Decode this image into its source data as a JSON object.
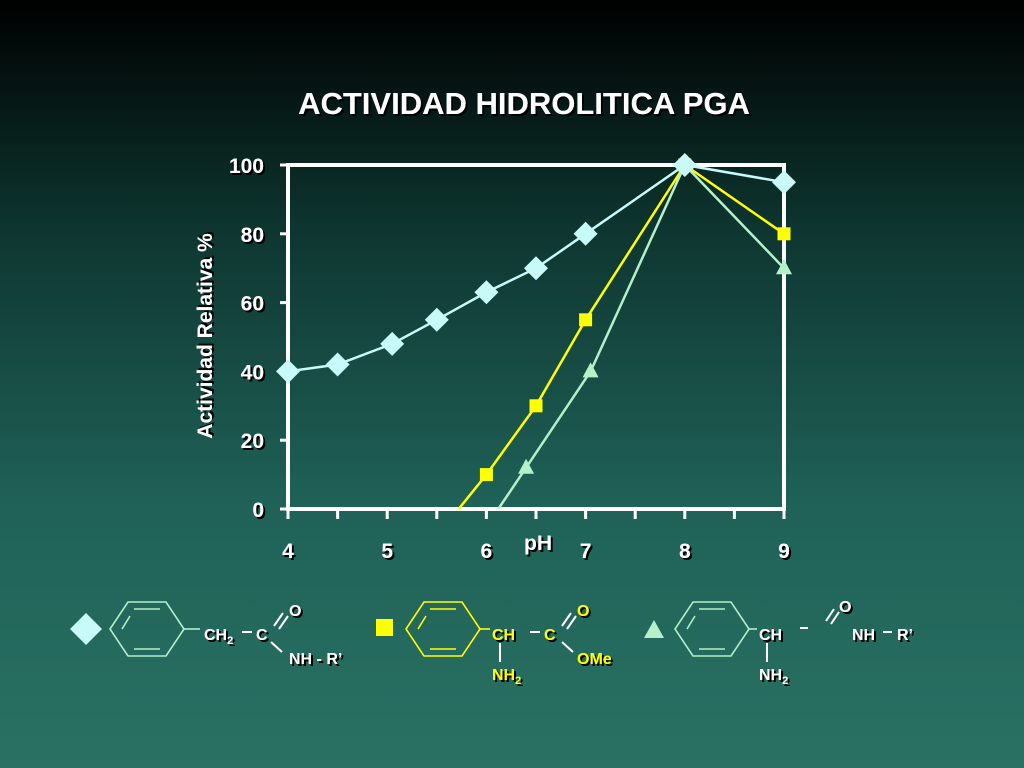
{
  "colors": {
    "diamond": "#c8fafa",
    "square": "#ffff00",
    "triangle": "#b4f0c8",
    "axis": "#ffffff",
    "text": "#ffffff",
    "structure_line": "#b4f0c8"
  },
  "chart_data": {
    "type": "line",
    "title": "ACTIVIDAD HIDROLITICA  PGA",
    "xlabel": "pH",
    "ylabel": "Actividad Relativa %",
    "xlim": [
      4,
      9
    ],
    "ylim": [
      0,
      100
    ],
    "xticks": [
      "4",
      "5",
      "6",
      "7",
      "8",
      "9"
    ],
    "yticks": [
      "0",
      "20",
      "40",
      "60",
      "80",
      "100"
    ],
    "grid": false,
    "series": [
      {
        "marker": "diamond",
        "x": [
          4,
          4.5,
          5.05,
          5.5,
          6,
          6.5,
          7,
          8,
          9
        ],
        "y": [
          40,
          42,
          48,
          55,
          63,
          70,
          80,
          100,
          95
        ]
      },
      {
        "marker": "square",
        "x": [
          5.72,
          6,
          6.5,
          7,
          8,
          9
        ],
        "y": [
          0,
          10,
          30,
          55,
          100,
          80
        ]
      },
      {
        "marker": "triangle",
        "x": [
          6.12,
          6.4,
          7.05,
          8,
          9
        ],
        "y": [
          0,
          12,
          40,
          100,
          70
        ]
      }
    ]
  },
  "structures": [
    {
      "marker": "diamond",
      "ch": "CH",
      "ch_sub": "2",
      "c": "C",
      "o": "O",
      "nh": "NH - R’"
    },
    {
      "marker": "square",
      "ch": "CH",
      "c": "C",
      "o": "O",
      "nh2": "NH",
      "nh2_sub": "2",
      "ome": "OMe"
    },
    {
      "marker": "triangle",
      "ch": "CH",
      "o": "O",
      "nh": "NH",
      "r": "R’",
      "nh2": "NH",
      "nh2_sub": "2"
    }
  ]
}
